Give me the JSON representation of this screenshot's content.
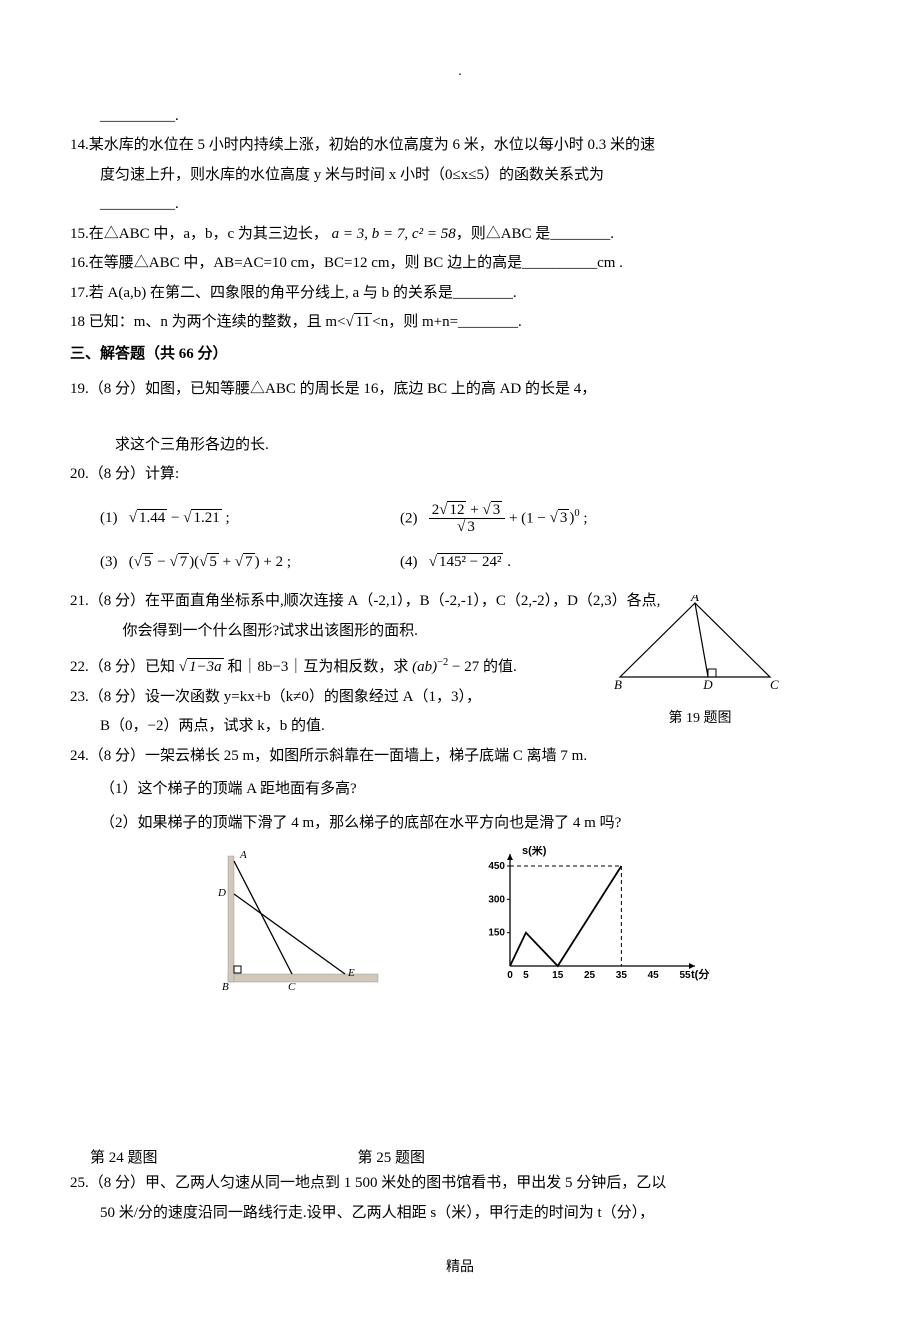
{
  "top_dot": ".",
  "blank_top": "__________.",
  "q14": {
    "num": "14.",
    "line1": "某水库的水位在 5 小时内持续上涨，初始的水位高度为 6 米，水位以每小时 0.3 米的速",
    "line2": "度匀速上升，则水库的水位高度 y 米与时间 x 小时（0≤x≤5）的函数关系式为",
    "blank": "__________."
  },
  "q15": {
    "num": "15.",
    "text1": "在△ABC 中，a，b，c 为其三边长，",
    "eq": "a = 3,  b = 7,  c² = 58",
    "text2": "，则△ABC 是",
    "blank": "________."
  },
  "q16": {
    "num": "16.",
    "text": "在等腰△ABC 中，AB=AC=10 cm，BC=12 cm，则 BC 边上的高是",
    "blank": "__________",
    "unit": "cm ."
  },
  "q17": {
    "num": "17.",
    "text1": "若 A(a,b) 在第二、四象限的角平分线上, a 与 b 的关系是",
    "blank": "________."
  },
  "q18": {
    "num": "18",
    "text1": " 已知：m、n 为两个连续的整数，且 m<",
    "sqrt": "11",
    "text2": "<n，则 m+n=",
    "blank": "________."
  },
  "section3": "三、解答题（共 66 分）",
  "q19": {
    "num": "19.",
    "text1": "（8 分）如图，已知等腰△ABC 的周长是 16，底边 BC 上的高 AD 的长是 4，",
    "text2": "求这个三角形各边的长.",
    "caption": "第 19 题图",
    "labels": {
      "A": "A",
      "B": "B",
      "C": "C",
      "D": "D"
    }
  },
  "q20": {
    "num": "20.",
    "title": "（8 分）计算:",
    "items": {
      "n1": "(1)",
      "e1a": "1.44",
      "e1b": "1.21",
      "n2": "(2)",
      "e2_num_a": "12",
      "e2_num_b": "3",
      "e2_den": "3",
      "e2_tail": "3",
      "n3": "(3)",
      "e3a": "5",
      "e3b": "7",
      "n4": "(4)",
      "e4": "145² − 24²"
    }
  },
  "q21": {
    "num": "21.",
    "line1": "（8 分）在平面直角坐标系中,顺次连接 A（-2,1），B（-2,-1），C（2,-2），D（2,3）各点,",
    "line2": "你会得到一个什么图形?试求出该图形的面积."
  },
  "q22": {
    "num": "22.",
    "text1": "（8 分）已知 ",
    "sqrt_a": "1−3a",
    "text2": " 和｜8b−3｜互为相反数，求 ",
    "expr": "(ab)",
    "exp": "−2",
    "text3": " − 27 的值."
  },
  "q23": {
    "num": "23.",
    "line1": "（8 分）设一次函数 y=kx+b（k≠0）的图象经过 A（1，3），",
    "line2": "B（0，−2）两点，试求 k，b 的值."
  },
  "q24": {
    "num": "24.",
    "line1": "（8 分）一架云梯长 25 m，如图所示斜靠在一面墙上，梯子底端 C 离墙 7 m.",
    "sub1": "（1）这个梯子的顶端 A 距地面有多高?",
    "sub2": "（2）如果梯子的顶端下滑了 4 m，那么梯子的底部在水平方向也是滑了 4 m 吗?",
    "labels": {
      "A": "A",
      "B": "B",
      "C": "C",
      "D": "D",
      "E": "E"
    }
  },
  "chart": {
    "ylabel": "s(米)",
    "xlabel": "t(分)",
    "yticks": [
      "150",
      "300",
      "450"
    ],
    "xticks": [
      "0",
      "5",
      "15",
      "25",
      "35",
      "45",
      "55"
    ],
    "axis_color": "#000000",
    "line_color": "#000000",
    "dash_color": "#000000",
    "fontsize": 10
  },
  "fig_caps": {
    "c24": "第 24 题图",
    "c25": "第 25 题图"
  },
  "q25": {
    "num": "25.",
    "line1": "（8 分）甲、乙两人匀速从同一地点到 1 500 米处的图书馆看书，甲出发 5 分钟后，乙以",
    "line2": "50 米/分的速度沿同一路线行走.设甲、乙两人相距 s（米），甲行走的时间为 t（分），"
  },
  "footer": "精品"
}
